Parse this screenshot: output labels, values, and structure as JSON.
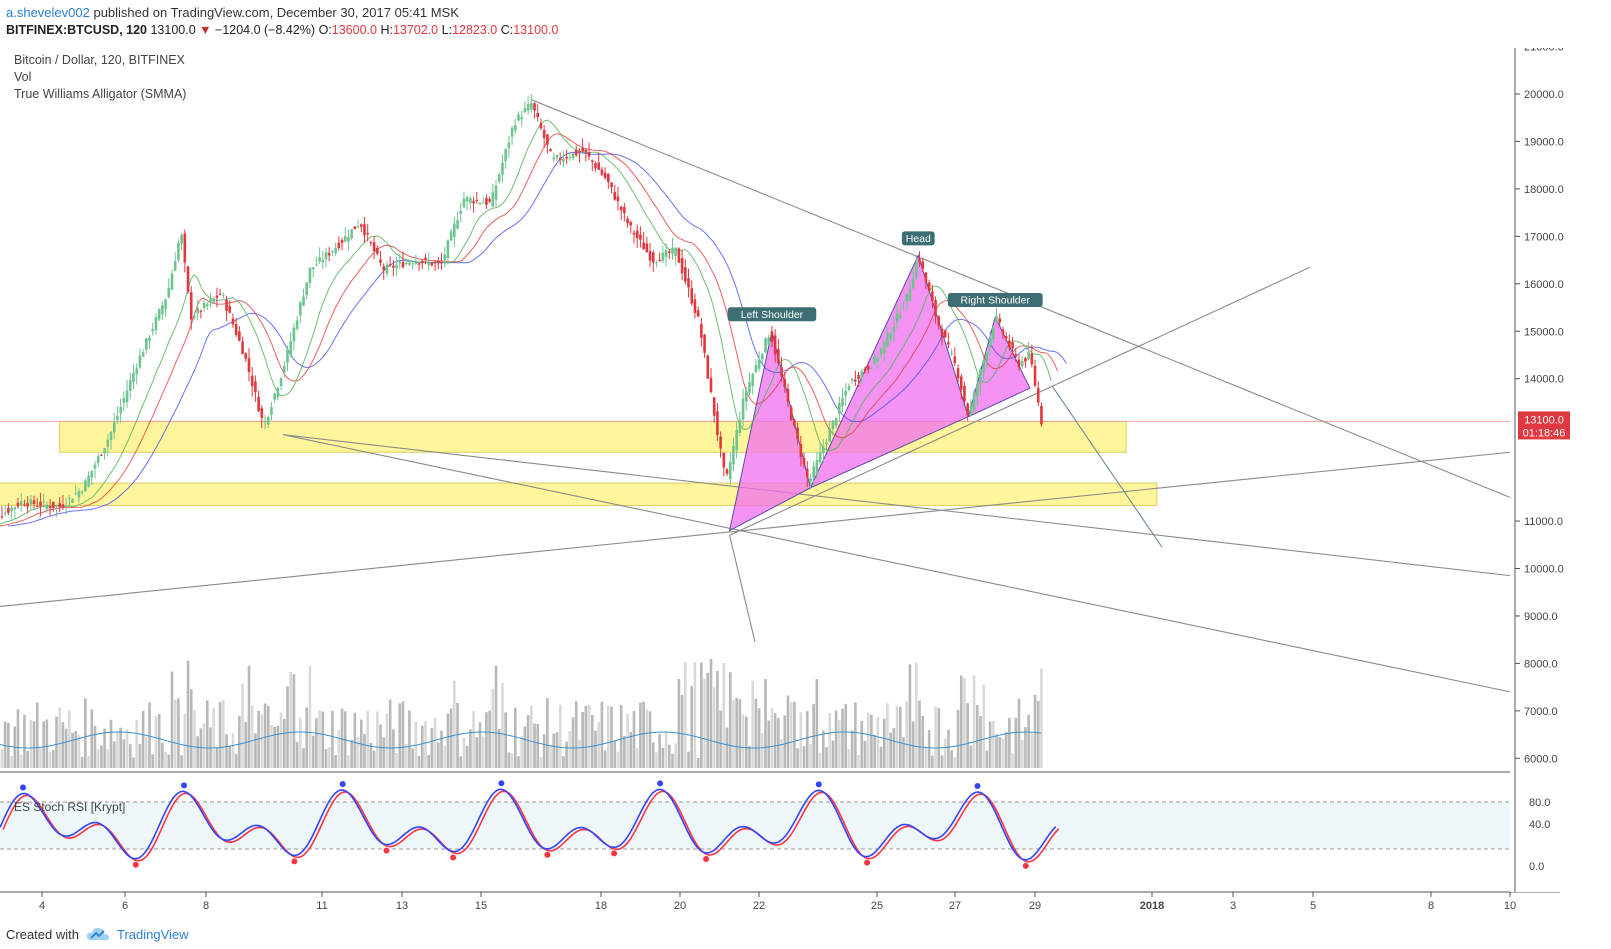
{
  "header": {
    "author": "a.shevelev002",
    "published": "published on TradingView.com, December 30, 2017 05:41 MSK",
    "symbol": "BITFINEX:BTCUSD, 120",
    "last": "13100.0",
    "change": "−1204.0 (−8.42%)",
    "o_label": "O:",
    "o_value": "13600.0",
    "h_label": "H:",
    "h_value": "13702.0",
    "l_label": "L:",
    "l_value": "12823.0",
    "c_label": "C:",
    "c_value": "13100.0"
  },
  "legend": {
    "main": "Bitcoin / Dollar, 120, BITFINEX",
    "vol": "Vol",
    "alligator": "True Williams Alligator (SMMA)"
  },
  "rsi_label": "ES Stoch RSI [Krypt]",
  "colors": {
    "up": "#6ec48f",
    "down": "#e0383e",
    "pattern": "#f06ff0",
    "zone": "#fff58a",
    "lips": "#4caf50",
    "teeth": "#e53935",
    "jaw": "#3f51f5",
    "rsi_k": "#3344ff",
    "rsi_d": "#ff3344"
  },
  "annotations": {
    "left_shoulder": "Left Shoulder",
    "head": "Head",
    "right_shoulder": "Right Shoulder"
  },
  "price_badge": {
    "price": "13100.0",
    "countdown": "01:18:46"
  },
  "footer": {
    "created": "Created with",
    "brand": "TradingView"
  },
  "chart_data": {
    "type": "candlestick",
    "symbol": "BITFINEX:BTCUSD",
    "interval": "120",
    "y_axis": {
      "ticks": [
        "21000.0",
        "20000.0",
        "19000.0",
        "18000.0",
        "17000.0",
        "16000.0",
        "15000.0",
        "14000.0",
        "11000.0",
        "10000.0",
        "9000.0",
        "8000.0",
        "7000.0",
        "6000.0"
      ],
      "range": [
        5800,
        21000
      ]
    },
    "x_axis": {
      "ticks": [
        "4",
        "6",
        "8",
        "11",
        "13",
        "15",
        "18",
        "20",
        "22",
        "25",
        "27",
        "29",
        "2018",
        "3",
        "5",
        "8",
        "10"
      ]
    },
    "ohlc_last": {
      "open": 13600.0,
      "high": 13702.0,
      "low": 12823.0,
      "close": 13100.0
    },
    "price_path": [
      {
        "d": 3.0,
        "p": 10900
      },
      {
        "d": 4.0,
        "p": 11400
      },
      {
        "d": 5.0,
        "p": 11300
      },
      {
        "d": 5.6,
        "p": 11700
      },
      {
        "d": 6.3,
        "p": 12800
      },
      {
        "d": 7.0,
        "p": 14300
      },
      {
        "d": 7.8,
        "p": 15800
      },
      {
        "d": 8.15,
        "p": 17100
      },
      {
        "d": 8.4,
        "p": 15300
      },
      {
        "d": 9.2,
        "p": 15800
      },
      {
        "d": 9.8,
        "p": 14500
      },
      {
        "d": 10.3,
        "p": 13000
      },
      {
        "d": 10.8,
        "p": 14200
      },
      {
        "d": 11.5,
        "p": 16300
      },
      {
        "d": 12.2,
        "p": 16800
      },
      {
        "d": 12.8,
        "p": 17300
      },
      {
        "d": 13.4,
        "p": 16300
      },
      {
        "d": 14.2,
        "p": 16500
      },
      {
        "d": 14.9,
        "p": 16400
      },
      {
        "d": 15.5,
        "p": 17800
      },
      {
        "d": 16.2,
        "p": 17700
      },
      {
        "d": 16.8,
        "p": 19400
      },
      {
        "d": 17.25,
        "p": 19800
      },
      {
        "d": 17.8,
        "p": 18600
      },
      {
        "d": 18.6,
        "p": 18800
      },
      {
        "d": 19.2,
        "p": 18200
      },
      {
        "d": 19.8,
        "p": 17200
      },
      {
        "d": 20.4,
        "p": 16500
      },
      {
        "d": 21.0,
        "p": 16700
      },
      {
        "d": 21.6,
        "p": 15200
      },
      {
        "d": 22.3,
        "p": 11800
      },
      {
        "d": 22.8,
        "p": 13700
      },
      {
        "d": 23.45,
        "p": 15000
      },
      {
        "d": 24.0,
        "p": 13200
      },
      {
        "d": 24.45,
        "p": 11800
      },
      {
        "d": 24.8,
        "p": 12500
      },
      {
        "d": 25.5,
        "p": 13900
      },
      {
        "d": 26.2,
        "p": 14400
      },
      {
        "d": 27.0,
        "p": 15700
      },
      {
        "d": 27.3,
        "p": 16600
      },
      {
        "d": 27.8,
        "p": 15200
      },
      {
        "d": 28.3,
        "p": 14200
      },
      {
        "d": 28.6,
        "p": 13200
      },
      {
        "d": 29.3,
        "p": 15300
      },
      {
        "d": 29.9,
        "p": 14300
      },
      {
        "d": 30.2,
        "p": 14500
      },
      {
        "d": 30.5,
        "p": 13100
      }
    ],
    "zones": [
      {
        "from_day": 5.0,
        "to_day": 32.7,
        "low": 12450,
        "high": 13100
      },
      {
        "from_day": 2.8,
        "to_day": 33.5,
        "low": 11330,
        "high": 11800
      }
    ],
    "pattern": {
      "name": "Head and Shoulders",
      "points": [
        {
          "label": "Left Shoulder",
          "day": 23.5,
          "price": 15000
        },
        {
          "label": "Head",
          "day": 27.3,
          "price": 16600
        },
        {
          "label": "Right Shoulder",
          "day": 29.3,
          "price": 15300
        }
      ]
    },
    "rsi": {
      "name": "ES Stoch RSI [Krypt]",
      "levels": [
        80.0,
        40.0,
        0.0
      ]
    }
  }
}
